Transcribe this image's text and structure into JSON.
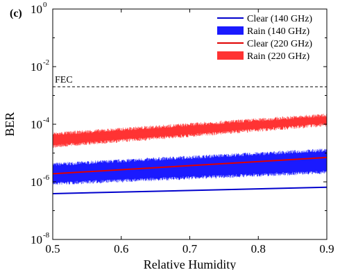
{
  "chart_data": {
    "type": "line",
    "panel_label": "(c)",
    "xlabel": "Relative Humidity",
    "ylabel": "BER",
    "xlim": [
      0.5,
      0.9
    ],
    "ylim_exponent": [
      -8,
      0
    ],
    "y_scale": "log",
    "x_ticks": [
      "0.5",
      "0.6",
      "0.7",
      "0.8",
      "0.9"
    ],
    "y_tick_base": "10",
    "y_ticks": [
      {
        "exp": -8,
        "base": "10",
        "sup": "-8"
      },
      {
        "exp": -6,
        "base": "10",
        "sup": "-6"
      },
      {
        "exp": -4,
        "base": "10",
        "sup": "-4"
      },
      {
        "exp": -2,
        "base": "10",
        "sup": "-2"
      },
      {
        "exp": 0,
        "base": "10",
        "sup": "0"
      }
    ],
    "grid": false,
    "legend_position": "top-right",
    "fec": {
      "label": "FEC",
      "value": 0.002
    },
    "series": [
      {
        "name": "Clear (140 GHz)",
        "kind": "line",
        "color": "#0000cc",
        "x": [
          0.5,
          0.9
        ],
        "y": [
          3.9e-07,
          6.5e-07
        ]
      },
      {
        "name": "Rain (140 GHz)",
        "kind": "band",
        "color": "#1a1aff",
        "x": [
          0.5,
          0.9
        ],
        "y_low": [
          1e-06,
          2.5e-06
        ],
        "y_high": [
          3.5e-06,
          1.1e-05
        ]
      },
      {
        "name": "Clear (220 GHz)",
        "kind": "line",
        "color": "#e00000",
        "x": [
          0.5,
          0.9
        ],
        "y": [
          1.9e-06,
          7e-06
        ]
      },
      {
        "name": "Rain (220 GHz)",
        "kind": "band",
        "color": "#ff3333",
        "x": [
          0.5,
          0.9
        ],
        "y_low": [
          2e-05,
          0.00011
        ],
        "y_high": [
          4e-05,
          0.00018
        ]
      }
    ]
  }
}
